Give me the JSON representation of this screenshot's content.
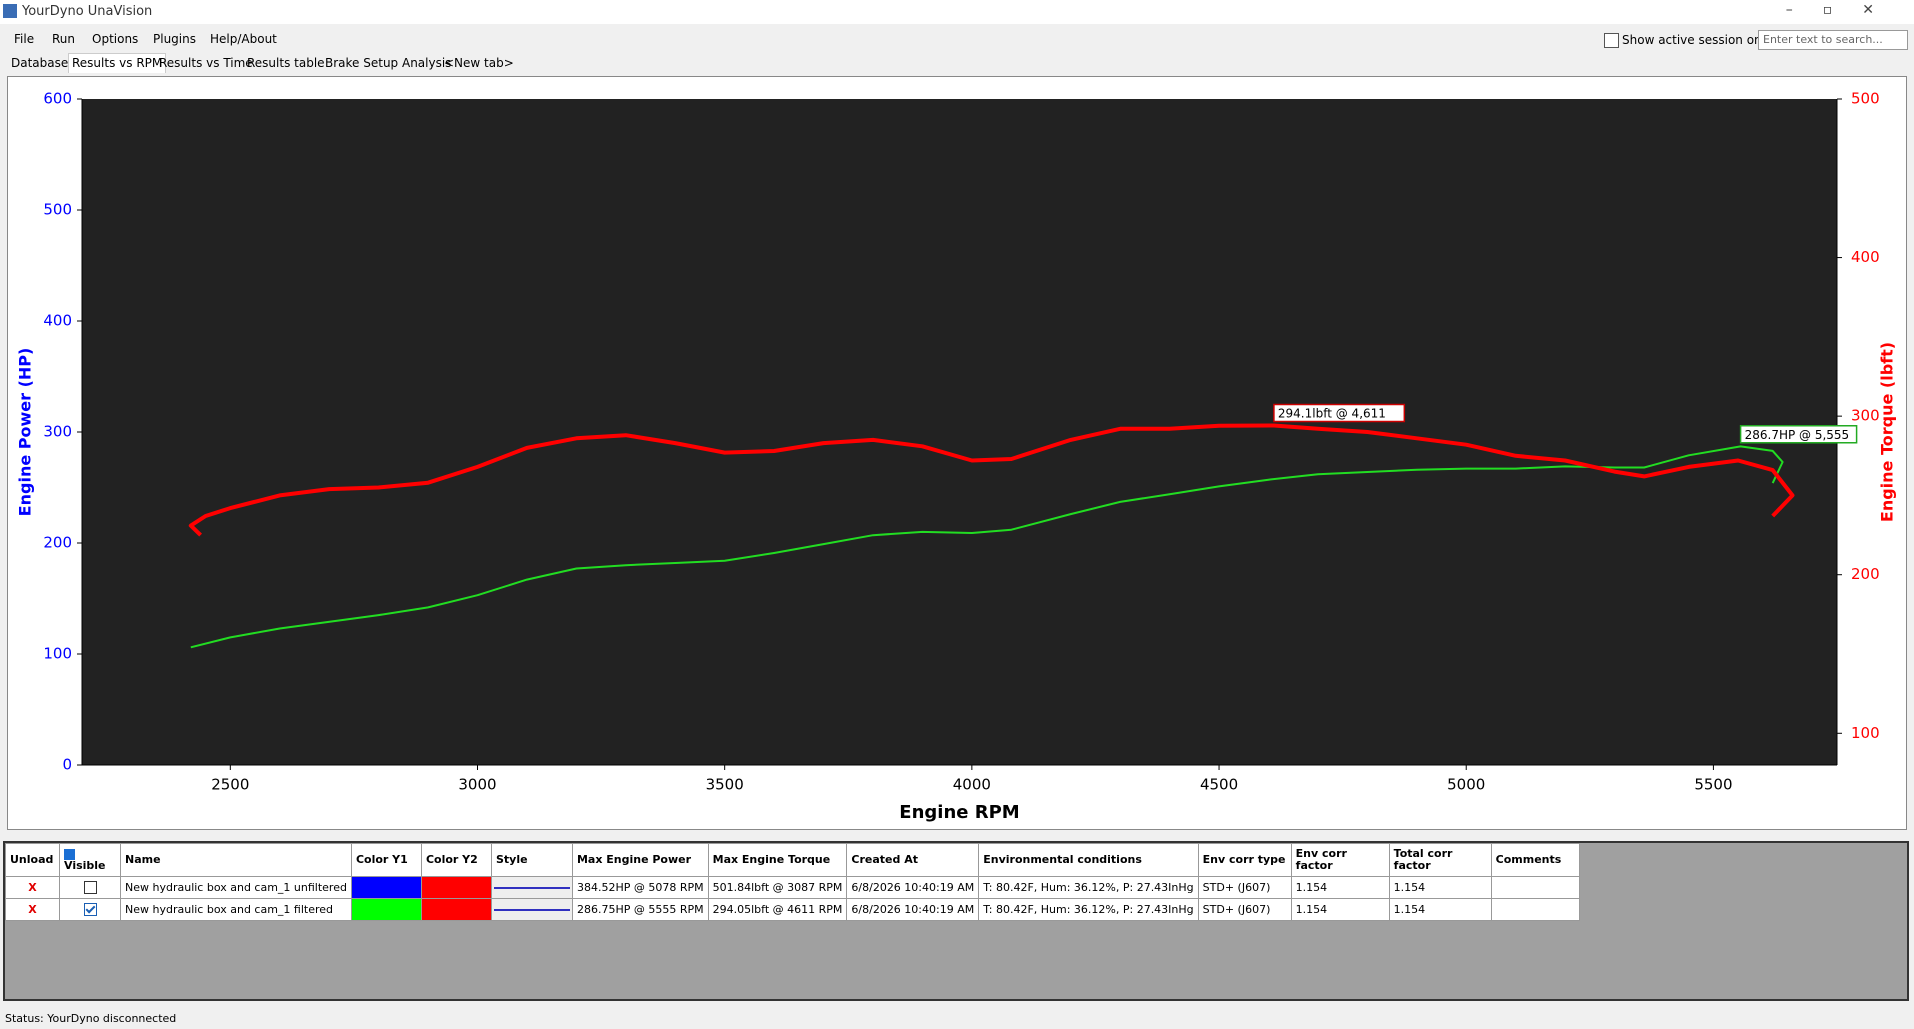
{
  "window": {
    "title": "YourDyno UnaVision"
  },
  "menu": [
    "File",
    "Run",
    "Options",
    "Plugins",
    "Help/About"
  ],
  "tabs": [
    "Database",
    "Results vs RPM",
    "Results vs Time",
    "Results table",
    "Brake Setup Analysis",
    "<New tab>"
  ],
  "toolbar": {
    "checkbox_label": "Show active session only",
    "search_placeholder": "Enter text to search..."
  },
  "chart_data": {
    "type": "line",
    "xlabel": "Engine RPM",
    "ylabel": "Engine Power (HP)",
    "y2label": "Engine Torque (lbft)",
    "background": "#222222",
    "ylabel_color": "#0000ff",
    "y2label_color": "#ff0000",
    "xlim": [
      2200,
      5750
    ],
    "xticks": [
      2500,
      3000,
      3500,
      4000,
      4500,
      5000,
      5500
    ],
    "ylim": [
      0,
      600
    ],
    "yticks": [
      0,
      100,
      200,
      300,
      400,
      500,
      600
    ],
    "y2lim": [
      80,
      500
    ],
    "y2ticks": [
      100,
      200,
      300,
      400,
      500
    ],
    "grid": false,
    "series": [
      {
        "name": "Engine Power",
        "color": "#22dd22",
        "axis": "y",
        "x": [
          2420,
          2500,
          2600,
          2800,
          2900,
          3000,
          3100,
          3200,
          3300,
          3400,
          3500,
          3600,
          3700,
          3800,
          3900,
          4000,
          4080,
          4200,
          4300,
          4400,
          4500,
          4600,
          4700,
          4800,
          4900,
          5000,
          5100,
          5200,
          5300,
          5360,
          5450,
          5555,
          5620,
          5640,
          5620
        ],
        "values": [
          106,
          115,
          123,
          135,
          142,
          153,
          167,
          177,
          180,
          182,
          184,
          191,
          199,
          207,
          210,
          209,
          212,
          226,
          237,
          244,
          251,
          257,
          262,
          264,
          266,
          267,
          267,
          269,
          268,
          268,
          279,
          287,
          283,
          273,
          254
        ]
      },
      {
        "name": "Engine Torque",
        "color": "#ff0000",
        "axis": "y2",
        "x": [
          2440,
          2420,
          2450,
          2500,
          2600,
          2700,
          2800,
          2900,
          3000,
          3100,
          3200,
          3300,
          3400,
          3500,
          3600,
          3700,
          3800,
          3900,
          4000,
          4080,
          4200,
          4300,
          4400,
          4500,
          4611,
          4700,
          4800,
          4900,
          5000,
          5100,
          5200,
          5300,
          5360,
          5450,
          5550,
          5620,
          5660,
          5620
        ],
        "values": [
          225,
          231,
          237,
          242,
          250,
          254,
          255,
          258,
          268,
          280,
          286,
          288,
          283,
          277,
          278,
          283,
          285,
          281,
          272,
          273,
          285,
          292,
          292,
          294,
          294.1,
          292,
          290,
          286,
          282,
          275,
          272,
          265,
          262,
          268,
          272,
          266,
          250,
          237
        ]
      }
    ],
    "annotations": [
      {
        "text": "294.1lbft @ 4,611",
        "x": 4611,
        "y": 294.1,
        "axis": "y2",
        "color": "#cc0000"
      },
      {
        "text": "286.7HP @ 5,555",
        "x": 5555,
        "y": 286.7,
        "axis": "y",
        "color": "#22aa22"
      }
    ]
  },
  "table": {
    "columns": [
      "Unload",
      "Visible",
      "Name",
      "Color Y1",
      "Color Y2",
      "Style",
      "Max Engine Power",
      "Max Engine Torque",
      "Created At",
      "Environmental conditions",
      "Env corr type",
      "Env corr factor",
      "Total corr factor",
      "Comments"
    ],
    "rows": [
      {
        "unload": "X",
        "visible": false,
        "name": "New hydraulic box and cam_1 unfiltered",
        "color_y1": "#0000ff",
        "color_y2": "#ff0000",
        "max_power": "384.52HP @ 5078 RPM",
        "max_torque": "501.84lbft @ 3087 RPM",
        "created": "6/8/2026 10:40:19 AM",
        "env": "T: 80.42F, Hum: 36.12%, P: 27.43InHg",
        "env_type": "STD+ (J607)",
        "env_factor": "1.154",
        "total_factor": "1.154"
      },
      {
        "unload": "X",
        "visible": true,
        "name": "New hydraulic box and cam_1 filtered",
        "color_y1": "#00ff00",
        "color_y2": "#ff0000",
        "max_power": "286.75HP @ 5555 RPM",
        "max_torque": "294.05lbft @ 4611 RPM",
        "created": "6/8/2026 10:40:19 AM",
        "env": "T: 80.42F, Hum: 36.12%, P: 27.43InHg",
        "env_type": "STD+ (J607)",
        "env_factor": "1.154",
        "total_factor": "1.154"
      }
    ]
  },
  "status": "Status: YourDyno disconnected"
}
